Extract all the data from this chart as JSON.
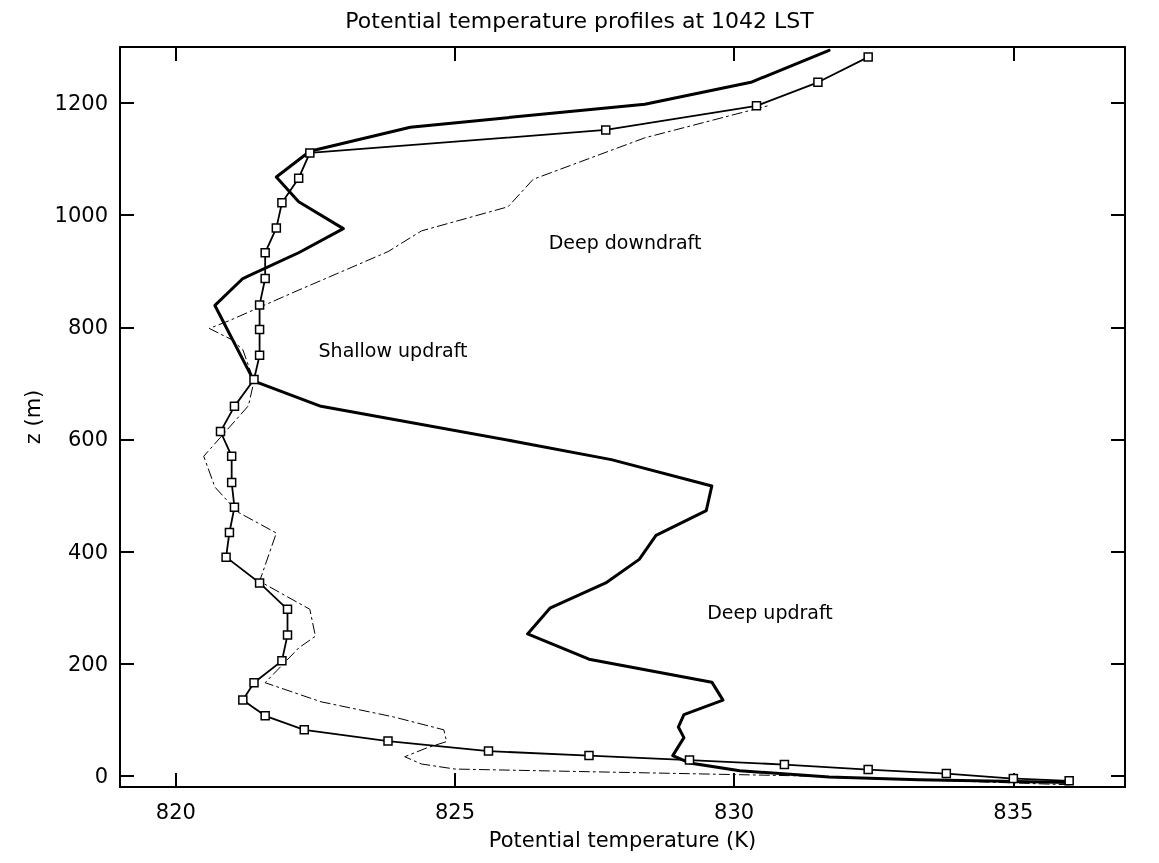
{
  "chart_data": {
    "type": "line",
    "title": "Potential temperature profiles at 1042 LST",
    "xlabel": "Potential temperature (K)",
    "ylabel": "z (m)",
    "xlim": [
      819,
      837
    ],
    "xticks": [
      820,
      825,
      830,
      835
    ],
    "ylim": [
      -20,
      1300
    ],
    "yticks": [
      0,
      200,
      400,
      600,
      800,
      1000,
      1200
    ],
    "annotations": [
      "Deep downdraft",
      "Shallow updraft",
      "Deep updraft"
    ],
    "series": [
      {
        "color": "#000000",
        "marker": "square",
        "line_style": "solid",
        "x": [
          836.0,
          835.0,
          833.8,
          832.4,
          830.9,
          829.2,
          827.4,
          825.6,
          823.8,
          822.3,
          821.6,
          821.2,
          821.4,
          821.9,
          822.0,
          822.0,
          821.5,
          820.9,
          820.96,
          821.05,
          821.0,
          821.0,
          820.8,
          821.05,
          821.4,
          821.5,
          821.5,
          821.5,
          821.6,
          821.6,
          821.8,
          821.9,
          822.2,
          822.4,
          827.7,
          830.4,
          831.5,
          832.4
        ],
        "values": [
          -9,
          -5,
          4,
          11,
          20,
          28,
          36,
          44,
          62,
          82,
          107,
          135,
          166,
          205,
          251,
          297,
          344,
          390,
          434,
          479,
          523,
          570,
          614,
          659,
          707,
          750,
          796,
          840,
          887,
          933,
          977,
          1022,
          1066,
          1111,
          1152,
          1195,
          1237,
          1282
        ]
      },
      {
        "color": "#000000",
        "marker": "none",
        "line_style": "solid",
        "x": [
          836.0,
          833.3,
          831.7,
          830.1,
          829.2,
          828.9,
          829.1,
          829.0,
          829.1,
          829.8,
          829.6,
          827.4,
          826.3,
          826.7,
          827.7,
          828.3,
          828.6,
          829.5,
          829.6,
          827.8,
          826.1,
          822.6,
          821.4,
          820.7,
          821.2,
          822.2,
          823.0,
          822.2,
          821.8,
          822.4,
          824.2,
          828.4,
          830.3,
          831.7
        ],
        "values": [
          -12,
          -7,
          -2,
          9,
          23,
          36,
          68,
          87,
          109,
          135,
          167,
          208,
          253,
          299,
          344,
          386,
          429,
          473,
          517,
          564,
          596,
          659,
          704,
          839,
          887,
          933,
          976,
          1024,
          1068,
          1114,
          1157,
          1198,
          1237,
          1294
        ]
      },
      {
        "color": "#000000",
        "marker": "none",
        "line_style": "dashed",
        "x": [
          836.0,
          831.1,
          825.0,
          824.4,
          824.1,
          824.5,
          824.85,
          824.8,
          823.9,
          822.6,
          821.6,
          822.2,
          822.5,
          822.4,
          821.5,
          821.8,
          821.1,
          820.7,
          820.5,
          821.3,
          821.4,
          821.2,
          821.0,
          820.6,
          820.96,
          822.1,
          823.8,
          824.4,
          825.95,
          826.4,
          828.4,
          830.6
        ],
        "values": [
          -16,
          0,
          12,
          21,
          34,
          50,
          61,
          82,
          105,
          132,
          166,
          228,
          249,
          297,
          347,
          433,
          471,
          515,
          570,
          660,
          704,
          760,
          778,
          798,
          812,
          862,
          935,
          972,
          1015,
          1064,
          1138,
          1195
        ]
      }
    ]
  }
}
